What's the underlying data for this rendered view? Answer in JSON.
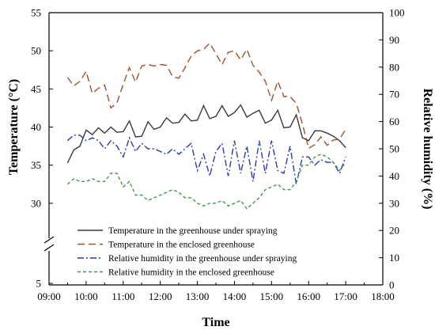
{
  "chart_data": {
    "type": "line",
    "xlabel": "Time",
    "ylabel": "Temperature (°C)",
    "y2label": "Relative humidity (%)",
    "x_ticks": [
      "09:00",
      "10:00",
      "11:00",
      "12:00",
      "13:00",
      "14:00",
      "15:00",
      "16:00",
      "17:00",
      "18:00"
    ],
    "y_ticks": [
      "5",
      "30",
      "35",
      "40",
      "45",
      "50",
      "55"
    ],
    "y2_ticks": [
      "0",
      "10",
      "20",
      "30",
      "40",
      "50",
      "60",
      "70",
      "80",
      "90",
      "100"
    ],
    "xlim": [
      9,
      18
    ],
    "ylim_upper": [
      25,
      55
    ],
    "y2lim": [
      0,
      100
    ],
    "axis_break": "left y-axis broken between 5 and 25 °C",
    "legend_position": "lower center",
    "series": [
      {
        "name": "Temperature in the greenhouse under spraying",
        "axis": "left",
        "color": "#3a3a3a",
        "dash": "solid",
        "x": [
          9.5,
          9.667,
          9.833,
          10.0,
          10.167,
          10.333,
          10.5,
          10.667,
          10.833,
          11.0,
          11.167,
          11.333,
          11.5,
          11.667,
          11.833,
          12.0,
          12.167,
          12.333,
          12.5,
          12.667,
          12.833,
          13.0,
          13.167,
          13.333,
          13.5,
          13.667,
          13.833,
          14.0,
          14.167,
          14.333,
          14.5,
          14.667,
          14.833,
          15.0,
          15.167,
          15.333,
          15.5,
          15.667,
          15.833,
          16.0,
          16.167,
          16.333,
          16.5,
          16.667,
          16.833,
          17.0
        ],
        "y": [
          35.3,
          37.0,
          37.5,
          39.6,
          39.0,
          39.9,
          39.2,
          40.0,
          39.3,
          39.4,
          40.8,
          38.7,
          38.8,
          40.7,
          39.7,
          40.0,
          41.2,
          40.5,
          40.6,
          41.7,
          40.8,
          40.9,
          42.8,
          41.1,
          41.4,
          42.8,
          41.4,
          41.9,
          42.9,
          41.3,
          41.8,
          42.2,
          40.5,
          40.9,
          42.2,
          39.9,
          40.0,
          41.6,
          38.6,
          38.2,
          39.5,
          39.5,
          39.2,
          38.8,
          38.2,
          37.3
        ]
      },
      {
        "name": "Temperature in the enclosed greenhouse",
        "axis": "left",
        "color": "#a0522d",
        "dash": "long-dash",
        "x": [
          9.5,
          9.667,
          9.833,
          10.0,
          10.167,
          10.333,
          10.5,
          10.667,
          10.833,
          11.0,
          11.167,
          11.333,
          11.5,
          11.667,
          11.833,
          12.0,
          12.167,
          12.333,
          12.5,
          12.667,
          12.833,
          13.0,
          13.167,
          13.333,
          13.5,
          13.667,
          13.833,
          14.0,
          14.167,
          14.333,
          14.5,
          14.667,
          14.833,
          15.0,
          15.167,
          15.333,
          15.5,
          15.667,
          15.833,
          16.0,
          16.167,
          16.333,
          16.5,
          16.667,
          16.833,
          17.0
        ],
        "y": [
          46.5,
          45.4,
          46.0,
          47.3,
          44.4,
          45.1,
          45.5,
          42.5,
          43.2,
          45.6,
          47.8,
          45.9,
          48.0,
          48.2,
          48.0,
          48.2,
          48.1,
          46.6,
          46.4,
          47.8,
          49.3,
          50.0,
          50.2,
          51.0,
          49.6,
          48.2,
          49.8,
          50.0,
          48.8,
          50.2,
          48.1,
          47.2,
          46.0,
          43.5,
          46.0,
          44.0,
          44.0,
          43.1,
          40.4,
          37.2,
          37.7,
          38.7,
          37.6,
          38.3,
          38.4,
          39.7
        ]
      },
      {
        "name": "Relative humidity in the greenhouse under spraying",
        "axis": "right",
        "color": "#2a3bb0",
        "dash": "dash-dot",
        "x": [
          9.5,
          9.667,
          9.833,
          10.0,
          10.167,
          10.333,
          10.5,
          10.667,
          10.833,
          11.0,
          11.167,
          11.333,
          11.5,
          11.667,
          11.833,
          12.0,
          12.167,
          12.333,
          12.5,
          12.667,
          12.833,
          13.0,
          13.167,
          13.333,
          13.5,
          13.667,
          13.833,
          14.0,
          14.167,
          14.333,
          14.5,
          14.667,
          14.833,
          15.0,
          15.167,
          15.333,
          15.5,
          15.667,
          15.833,
          16.0,
          16.167,
          16.333,
          16.5,
          16.667,
          16.833,
          17.0
        ],
        "y": [
          53,
          55,
          55,
          53,
          54,
          53,
          50,
          53,
          51,
          47,
          54,
          49,
          52,
          50,
          50,
          49,
          48,
          50,
          48,
          50,
          52,
          42,
          48,
          40,
          49,
          52,
          40,
          53,
          41,
          51,
          38,
          53,
          41,
          53,
          42,
          41,
          51,
          37,
          47,
          47,
          44,
          46,
          45,
          45,
          41,
          47
        ]
      },
      {
        "name": "Relative humidity in the enclosed greenhouse",
        "axis": "right",
        "color": "#3f9a4a",
        "dash": "short-dash",
        "x": [
          9.5,
          9.667,
          9.833,
          10.0,
          10.167,
          10.333,
          10.5,
          10.667,
          10.833,
          11.0,
          11.167,
          11.333,
          11.5,
          11.667,
          11.833,
          12.0,
          12.167,
          12.333,
          12.5,
          12.667,
          12.833,
          13.0,
          13.167,
          13.333,
          13.5,
          13.667,
          13.833,
          14.0,
          14.167,
          14.333,
          14.5,
          14.667,
          14.833,
          15.0,
          15.167,
          15.333,
          15.5,
          15.667,
          15.833,
          16.0,
          16.167,
          16.333,
          16.5,
          16.667,
          16.833,
          17.0
        ],
        "y": [
          37,
          39,
          38,
          38,
          39,
          38,
          38,
          41,
          41,
          36,
          38,
          33,
          33,
          31,
          32,
          33,
          34,
          35,
          34,
          32,
          32,
          30,
          29,
          30,
          30,
          31,
          29,
          30,
          31,
          28,
          30,
          32,
          35,
          36,
          37,
          35,
          35,
          38,
          44,
          44,
          47,
          48,
          47,
          45,
          42,
          45
        ]
      }
    ]
  }
}
